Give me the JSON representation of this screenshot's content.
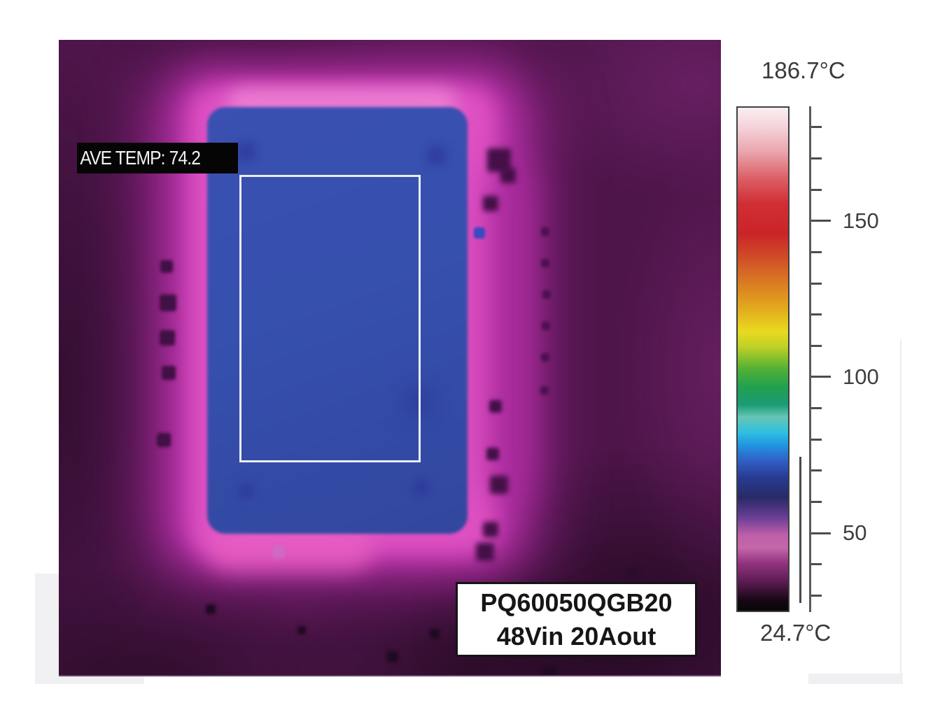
{
  "thermal_image": {
    "ave_temp_label": "AVE TEMP: 74.2",
    "device_label": {
      "line1": "PQ60050QGB20",
      "line2": "48Vin 20Aout"
    }
  },
  "color_scale": {
    "max_label": "186.7°C",
    "min_label": "24.7°C",
    "max_c": 186.7,
    "min_c": 24.7,
    "major_ticks": [
      {
        "value": 150,
        "label": "150"
      },
      {
        "value": 100,
        "label": "100"
      },
      {
        "value": 50,
        "label": "50"
      }
    ],
    "minor_ticks": {
      "from": 30,
      "to": 180,
      "step": 10
    },
    "range_indicator": {
      "high_c": 74.5,
      "low_c": 27.5
    },
    "colormap": [
      {
        "pos": 0.0,
        "color": "#f9eef1"
      },
      {
        "pos": 0.04,
        "color": "#f4d2d8"
      },
      {
        "pos": 0.09,
        "color": "#e9a2ab"
      },
      {
        "pos": 0.14,
        "color": "#dc5f66"
      },
      {
        "pos": 0.19,
        "color": "#d02f35"
      },
      {
        "pos": 0.25,
        "color": "#ca2428"
      },
      {
        "pos": 0.3,
        "color": "#d04f27"
      },
      {
        "pos": 0.35,
        "color": "#da7d22"
      },
      {
        "pos": 0.4,
        "color": "#e2ab1d"
      },
      {
        "pos": 0.445,
        "color": "#e9da1f"
      },
      {
        "pos": 0.475,
        "color": "#c0d026"
      },
      {
        "pos": 0.52,
        "color": "#50b035"
      },
      {
        "pos": 0.555,
        "color": "#22a14e"
      },
      {
        "pos": 0.59,
        "color": "#1a9b76"
      },
      {
        "pos": 0.615,
        "color": "#67c6b4"
      },
      {
        "pos": 0.645,
        "color": "#30c0e2"
      },
      {
        "pos": 0.67,
        "color": "#2196e0"
      },
      {
        "pos": 0.7,
        "color": "#2f62c8"
      },
      {
        "pos": 0.735,
        "color": "#283b92"
      },
      {
        "pos": 0.775,
        "color": "#282a66"
      },
      {
        "pos": 0.815,
        "color": "#6a3f96"
      },
      {
        "pos": 0.85,
        "color": "#c05fa8"
      },
      {
        "pos": 0.875,
        "color": "#c467ab"
      },
      {
        "pos": 0.905,
        "color": "#93347f"
      },
      {
        "pos": 0.945,
        "color": "#571a4f"
      },
      {
        "pos": 0.98,
        "color": "#150713"
      },
      {
        "pos": 1.0,
        "color": "#0a050a"
      }
    ]
  },
  "chart_data": {
    "type": "heatmap",
    "title": "",
    "colorbar": {
      "unit": "°C",
      "scale_max": 186.7,
      "scale_min": 24.7,
      "labeled_ticks": [
        150,
        100,
        50
      ],
      "minor_tick_step": 10,
      "legend_position": "right"
    },
    "measured": {
      "average_temp_c": 74.2
    },
    "device": {
      "part_number": "PQ60050QGB20",
      "conditions": "48Vin 20Aout"
    },
    "annotations": [
      "AVE TEMP: 74.2",
      "PQ60050QGB20",
      "48Vin 20Aout"
    ]
  }
}
